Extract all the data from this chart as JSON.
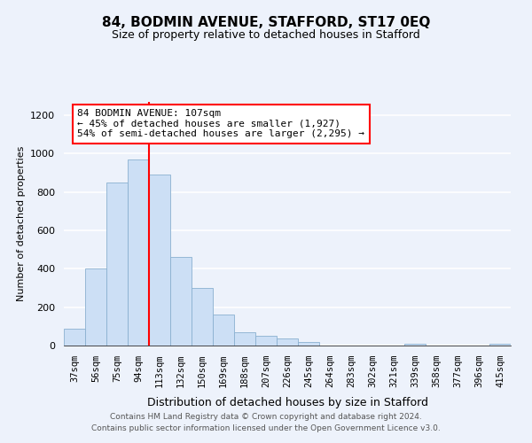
{
  "title": "84, BODMIN AVENUE, STAFFORD, ST17 0EQ",
  "subtitle": "Size of property relative to detached houses in Stafford",
  "xlabel": "Distribution of detached houses by size in Stafford",
  "ylabel": "Number of detached properties",
  "bar_labels": [
    "37sqm",
    "56sqm",
    "75sqm",
    "94sqm",
    "113sqm",
    "132sqm",
    "150sqm",
    "169sqm",
    "188sqm",
    "207sqm",
    "226sqm",
    "245sqm",
    "264sqm",
    "283sqm",
    "302sqm",
    "321sqm",
    "339sqm",
    "358sqm",
    "377sqm",
    "396sqm",
    "415sqm"
  ],
  "bar_values": [
    90,
    400,
    850,
    970,
    890,
    460,
    300,
    160,
    70,
    50,
    35,
    20,
    0,
    0,
    0,
    0,
    10,
    0,
    0,
    0,
    10
  ],
  "bar_color": "#ccdff5",
  "bar_edge_color": "#8ab0d0",
  "vline_x_index": 4,
  "vline_color": "red",
  "annotation_text": "84 BODMIN AVENUE: 107sqm\n← 45% of detached houses are smaller (1,927)\n54% of semi-detached houses are larger (2,295) →",
  "annotation_box_facecolor": "white",
  "annotation_box_edgecolor": "red",
  "ylim": [
    0,
    1270
  ],
  "yticks": [
    0,
    200,
    400,
    600,
    800,
    1000,
    1200
  ],
  "footer_line1": "Contains HM Land Registry data © Crown copyright and database right 2024.",
  "footer_line2": "Contains public sector information licensed under the Open Government Licence v3.0.",
  "bg_color": "#edf2fb",
  "grid_color": "white",
  "title_fontsize": 11,
  "subtitle_fontsize": 9,
  "ylabel_fontsize": 8,
  "xlabel_fontsize": 9,
  "tick_fontsize": 7.5
}
